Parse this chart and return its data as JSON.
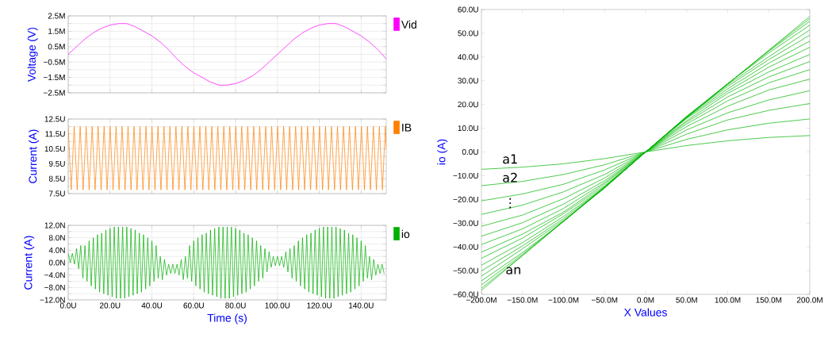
{
  "chart_data": [
    {
      "type": "line",
      "ylabel": "Voltage (V)",
      "xlim": [
        0,
        152
      ],
      "ylim": [
        -2.5,
        2.5
      ],
      "grid": true,
      "legend": "right",
      "tick_labels": "y",
      "x": [
        0,
        4,
        8,
        12,
        16,
        20,
        24,
        28,
        32,
        36,
        40,
        44,
        48,
        52,
        56,
        60,
        64,
        68,
        72,
        76,
        80,
        84,
        88,
        92,
        96,
        100,
        104,
        108,
        112,
        116,
        120,
        124,
        128,
        132,
        136,
        140,
        144,
        148,
        152
      ],
      "xticks": [
        0,
        20,
        40,
        60,
        80,
        100,
        120,
        140
      ],
      "yticks": [
        {
          "value": -2.5,
          "label": "−2.5M"
        },
        {
          "value": -2,
          "label": null
        },
        {
          "value": -1.5,
          "label": "−1.5M"
        },
        {
          "value": -1,
          "label": null
        },
        {
          "value": -0.5,
          "label": "−0.5M"
        },
        {
          "value": 0,
          "label": null
        },
        {
          "value": 0.5,
          "label": "0.5M"
        },
        {
          "value": 1,
          "label": null
        },
        {
          "value": 1.5,
          "label": "1.5M"
        },
        {
          "value": 2,
          "label": null
        },
        {
          "value": 2.5,
          "label": "2.5M"
        }
      ],
      "series": [
        {
          "name": "Vid",
          "color": "#ff00ff",
          "values": [
            0,
            0.5,
            1.0,
            1.4,
            1.7,
            1.9,
            2.0,
            2.0,
            1.8,
            1.5,
            1.2,
            0.8,
            0.3,
            -0.3,
            -0.8,
            -1.2,
            -1.5,
            -1.8,
            -2.0,
            -2.0,
            -1.9,
            -1.7,
            -1.4,
            -1.0,
            -0.5,
            0,
            0.5,
            1.0,
            1.4,
            1.7,
            1.9,
            2.0,
            2.0,
            1.8,
            1.5,
            1.2,
            0.8,
            0.3,
            -0.3
          ]
        }
      ]
    },
    {
      "type": "line",
      "ylabel": "Current (A)",
      "xlim": [
        0,
        152
      ],
      "ylim": [
        7.5,
        12.5
      ],
      "grid": true,
      "legend": "right",
      "tick_labels": "y",
      "x": [
        0,
        1.43,
        2.86,
        4.29,
        5.72,
        7.15,
        8.58,
        10.01,
        11.44,
        12.87,
        14.3,
        15.73,
        17.16,
        18.59,
        20.02,
        21.45,
        22.88,
        24.31,
        25.74,
        27.17,
        28.6,
        30.03,
        31.46,
        32.89,
        34.32,
        35.75,
        37.18,
        38.61,
        40.04,
        41.47,
        42.9,
        44.33,
        45.76,
        47.19,
        48.62,
        50.05,
        51.48,
        52.91,
        54.34,
        55.77,
        57.2,
        58.63,
        60.06,
        61.49,
        62.92,
        64.35,
        65.78,
        67.21,
        68.64,
        70.07,
        71.5,
        72.93,
        74.36,
        75.79,
        77.22,
        78.65,
        80.08,
        81.51,
        82.94,
        84.37,
        85.8,
        87.23,
        88.66,
        90.09,
        91.52,
        92.95,
        94.38,
        95.81,
        97.24,
        98.67,
        100.1,
        101.53,
        102.96,
        104.39,
        105.82,
        107.25,
        108.68,
        110.11,
        111.54,
        112.97,
        114.4,
        115.83,
        117.26,
        118.69,
        120.12,
        121.55,
        122.98,
        124.41,
        125.84,
        127.27,
        128.7,
        130.13,
        131.56,
        132.99,
        134.42,
        135.85,
        137.28,
        138.71,
        140.14,
        141.57,
        143,
        144.43,
        145.86,
        147.29,
        148.72,
        150.15,
        151.58,
        152
      ],
      "xticks": [
        0,
        20,
        40,
        60,
        80,
        100,
        120,
        140
      ],
      "yticks": [
        {
          "value": 7.5,
          "label": "7.5U"
        },
        {
          "value": 8,
          "label": null
        },
        {
          "value": 8.5,
          "label": "8.5U"
        },
        {
          "value": 9,
          "label": null
        },
        {
          "value": 9.5,
          "label": "9.5U"
        },
        {
          "value": 10,
          "label": null
        },
        {
          "value": 10.5,
          "label": "10.5U"
        },
        {
          "value": 11,
          "label": null
        },
        {
          "value": 11.5,
          "label": "11.5U"
        },
        {
          "value": 12,
          "label": null
        },
        {
          "value": 12.5,
          "label": "12.5U"
        }
      ],
      "series": [
        {
          "name": "IB",
          "color": "#ff8000",
          "values": [
            12,
            7.75,
            12,
            7.75,
            12,
            7.75,
            12,
            7.75,
            12,
            7.75,
            12,
            7.75,
            12,
            7.75,
            12,
            7.75,
            12,
            7.75,
            12,
            7.75,
            12,
            7.75,
            12,
            7.75,
            12,
            7.75,
            12,
            7.75,
            12,
            7.75,
            12,
            7.75,
            12,
            7.75,
            12,
            7.75,
            12,
            7.75,
            12,
            7.75,
            12,
            7.75,
            12,
            7.75,
            12,
            7.75,
            12,
            7.75,
            12,
            7.75,
            12,
            7.75,
            12,
            7.75,
            12,
            7.75,
            12,
            7.75,
            12,
            7.75,
            12,
            7.75,
            12,
            7.75,
            12,
            7.75,
            12,
            7.75,
            12,
            7.75,
            12,
            7.75,
            12,
            7.75,
            12,
            7.75,
            12,
            7.75,
            12,
            7.75,
            12,
            7.75,
            12,
            7.75,
            12,
            7.75,
            12,
            7.75,
            12,
            7.75,
            12,
            7.75,
            12,
            7.75,
            12,
            7.75,
            12,
            7.75,
            12,
            7.75,
            12,
            7.75,
            12,
            7.75,
            12,
            7.75,
            12,
            10.5
          ]
        }
      ]
    },
    {
      "type": "line",
      "ylabel": "Current (A)",
      "xlabel": "Time (s)",
      "xlim": [
        0,
        152
      ],
      "ylim": [
        -12,
        12
      ],
      "grid": true,
      "legend": "right",
      "x": [
        0,
        1,
        2,
        3,
        4,
        5,
        6,
        7,
        8,
        9,
        10,
        11,
        12,
        13,
        14,
        15,
        16,
        17,
        18,
        19,
        20,
        21,
        22,
        23,
        24,
        25,
        26,
        27,
        28,
        29,
        30,
        31,
        32,
        33,
        34,
        35,
        36,
        37,
        38,
        39,
        40,
        41,
        42,
        43,
        44,
        45,
        46,
        47,
        48,
        49,
        50,
        51,
        52,
        53,
        54,
        55,
        56,
        57,
        58,
        59,
        60,
        61,
        62,
        63,
        64,
        65,
        66,
        67,
        68,
        69,
        70,
        71,
        72,
        73,
        74,
        75,
        76,
        77,
        78,
        79,
        80,
        81,
        82,
        83,
        84,
        85,
        86,
        87,
        88,
        89,
        90,
        91,
        92,
        93,
        94,
        95,
        96,
        97,
        98,
        99,
        100,
        101,
        102,
        103,
        104,
        105,
        106,
        107,
        108,
        109,
        110,
        111,
        112,
        113,
        114,
        115,
        116,
        117,
        118,
        119,
        120,
        121,
        122,
        123,
        124,
        125,
        126,
        127,
        128,
        129,
        130,
        131,
        132,
        133,
        134,
        135,
        136,
        137,
        138,
        139,
        140,
        141,
        142,
        143,
        144,
        145,
        146,
        147,
        148,
        149,
        150,
        151
      ],
      "xticks": [
        {
          "value": 0,
          "label": "0.0U"
        },
        {
          "value": 20,
          "label": "20.0U"
        },
        {
          "value": 40,
          "label": "40.0U"
        },
        {
          "value": 60,
          "label": "60.0U"
        },
        {
          "value": 80,
          "label": "80.0U"
        },
        {
          "value": 100,
          "label": "100.0U"
        },
        {
          "value": 120,
          "label": "120.0U"
        },
        {
          "value": 140,
          "label": "140.0U"
        }
      ],
      "yticks": [
        {
          "value": -12,
          "label": "−12.0N"
        },
        {
          "value": -10,
          "label": null
        },
        {
          "value": -8,
          "label": "−8.0N"
        },
        {
          "value": -6,
          "label": null
        },
        {
          "value": -4,
          "label": "−4.0N"
        },
        {
          "value": -2,
          "label": null
        },
        {
          "value": 0,
          "label": "0.0N"
        },
        {
          "value": 2,
          "label": null
        },
        {
          "value": 4,
          "label": "4.0N"
        },
        {
          "value": 6,
          "label": null
        },
        {
          "value": 8,
          "label": "8.0N"
        },
        {
          "value": 10,
          "label": null
        },
        {
          "value": 12,
          "label": "12.0N"
        }
      ],
      "series": [
        {
          "name": "io",
          "color": "#00b000",
          "values": [
            3,
            0,
            3,
            -0.5,
            4.5,
            -2,
            5.5,
            -5,
            5.5,
            -6,
            7,
            -7.5,
            8,
            -8.5,
            9,
            -9.5,
            9.5,
            -10,
            10.5,
            -10.5,
            11,
            -11,
            11.5,
            -11.5,
            11.5,
            -11.5,
            11.5,
            -11.5,
            11.5,
            -11,
            11,
            -10.5,
            10.5,
            -10,
            9.5,
            -9.5,
            9,
            -8.5,
            8,
            -7.5,
            7,
            -6,
            5.5,
            -5,
            2,
            -5.5,
            1,
            -4,
            -0.5,
            -3.5,
            -0.5,
            -3.5,
            -0.5,
            -4,
            1,
            -5.5,
            2,
            -5,
            5.5,
            -6,
            7,
            -7.5,
            8,
            -8.5,
            9,
            -9.5,
            9.5,
            -10,
            10.5,
            -10.5,
            11,
            -11,
            11.5,
            -11.5,
            11.5,
            -11.5,
            11.5,
            -11.5,
            11.5,
            -11,
            11,
            -10.5,
            10.5,
            -10,
            9.5,
            -9.5,
            9,
            -8.5,
            8,
            -7.5,
            7,
            -6,
            5.5,
            -5,
            4.5,
            -3,
            3.5,
            -1.5,
            2,
            -1,
            2,
            -1,
            2,
            -1.5,
            3.5,
            -3,
            4.5,
            -5,
            5.5,
            -6,
            7,
            -7.5,
            8,
            -8.5,
            9,
            -9.5,
            9.5,
            -10,
            10.5,
            -10.5,
            11,
            -11,
            11.5,
            -11.5,
            11.5,
            -11.5,
            11.5,
            -11.5,
            11.5,
            -11,
            11,
            -10.5,
            10.5,
            -10,
            9.5,
            -9.5,
            9,
            -8.5,
            8,
            -7.5,
            7,
            -6,
            5.5,
            -5,
            2,
            -5.5,
            1,
            -4,
            -0.5,
            -3.5,
            -0.5,
            -3.5
          ]
        }
      ]
    },
    {
      "type": "line",
      "xlabel": "X Values",
      "ylabel": "io (A)",
      "xlim": [
        -200,
        200
      ],
      "ylim": [
        -60,
        60
      ],
      "x": [
        -200,
        -150,
        -100,
        -50,
        0,
        50,
        100,
        150,
        200
      ],
      "xticks": [
        {
          "value": -200,
          "label": "−200.0M"
        },
        {
          "value": -150,
          "label": "−150.0M"
        },
        {
          "value": -100,
          "label": "−100.0M"
        },
        {
          "value": -50,
          "label": "−50.0M"
        },
        {
          "value": 0,
          "label": "0.0M"
        },
        {
          "value": 50,
          "label": "50.0M"
        },
        {
          "value": 100,
          "label": "100.0M"
        },
        {
          "value": 150,
          "label": "150.0M"
        },
        {
          "value": 200,
          "label": "200.0M"
        }
      ],
      "yticks": [
        {
          "value": -60,
          "label": "−60.0U"
        },
        {
          "value": -50,
          "label": "−50.0U"
        },
        {
          "value": -40,
          "label": "−40.0U"
        },
        {
          "value": -30,
          "label": "−30.0U"
        },
        {
          "value": -20,
          "label": "−20.0U"
        },
        {
          "value": -10,
          "label": "−10.0U"
        },
        {
          "value": 0,
          "label": "0.0U"
        },
        {
          "value": 10,
          "label": "10.0U"
        },
        {
          "value": 20,
          "label": "20.0U"
        },
        {
          "value": 30,
          "label": "30.0U"
        },
        {
          "value": 40,
          "label": "40.0U"
        },
        {
          "value": 50,
          "label": "50.0U"
        },
        {
          "value": 60,
          "label": "60.0U"
        }
      ],
      "annotations": [
        "a1",
        "a2",
        "⋮",
        "an"
      ],
      "series": [
        {
          "color": "#00b400",
          "values": [
            -7.3,
            -6.4,
            -5.0,
            -2.8,
            0,
            2.7,
            4.7,
            6.1,
            6.9
          ]
        },
        {
          "color": "#00b400",
          "values": [
            -14.2,
            -12.4,
            -9.5,
            -5.4,
            0,
            5.3,
            9.3,
            12.1,
            13.9
          ]
        },
        {
          "color": "#00b400",
          "values": [
            -20.6,
            -17.7,
            -13.6,
            -7.6,
            0,
            7.5,
            13.5,
            17.5,
            20.4
          ]
        },
        {
          "color": "#00b400",
          "values": [
            -26.3,
            -22.4,
            -16.8,
            -9.5,
            0,
            9.3,
            16.5,
            21.9,
            25.8
          ]
        },
        {
          "color": "#00b400",
          "values": [
            -31.3,
            -26.6,
            -19.7,
            -11.0,
            0,
            10.7,
            19.3,
            26.1,
            30.7
          ]
        },
        {
          "color": "#00b400",
          "values": [
            -35.5,
            -29.8,
            -22.0,
            -12.1,
            0,
            11.8,
            21.5,
            29.1,
            34.7
          ]
        },
        {
          "color": "#00b400",
          "values": [
            -39.0,
            -32.4,
            -23.8,
            -12.9,
            0,
            12.6,
            23.2,
            31.6,
            38.1
          ]
        },
        {
          "color": "#00b400",
          "values": [
            -42.2,
            -34.6,
            -25.3,
            -13.5,
            0,
            13.2,
            24.7,
            33.7,
            41.1
          ]
        },
        {
          "color": "#00b400",
          "values": [
            -44.8,
            -36.3,
            -26.0,
            -14.3,
            0,
            14.1,
            25.6,
            35.7,
            44.1
          ]
        },
        {
          "color": "#00b400",
          "values": [
            -47.7,
            -38.2,
            -27.2,
            -14.8,
            0,
            14.5,
            26.6,
            37.4,
            46.7
          ]
        },
        {
          "color": "#00b400",
          "values": [
            -50.1,
            -39.6,
            -28.1,
            -15.0,
            0,
            14.8,
            27.6,
            38.9,
            49.2
          ]
        },
        {
          "color": "#00b400",
          "values": [
            -52.3,
            -40.8,
            -28.8,
            -15.2,
            0,
            14.9,
            28.3,
            40.1,
            51.4
          ]
        },
        {
          "color": "#00b400",
          "values": [
            -54.3,
            -42.4,
            -29.3,
            -15.2,
            0,
            15.0,
            28.8,
            41.7,
            53.4
          ]
        },
        {
          "color": "#00b400",
          "values": [
            -56.0,
            -43.1,
            -29.1,
            -15.1,
            0,
            14.9,
            28.7,
            42.4,
            55.1
          ]
        },
        {
          "color": "#00b400",
          "values": [
            -57.4,
            -43.6,
            -29.3,
            -14.9,
            0,
            14.6,
            28.7,
            42.7,
            56.2
          ]
        },
        {
          "color": "#00b400",
          "values": [
            -58.3,
            -43.7,
            -29.2,
            -14.6,
            0,
            14.3,
            28.6,
            42.8,
            57.1
          ]
        }
      ]
    }
  ]
}
